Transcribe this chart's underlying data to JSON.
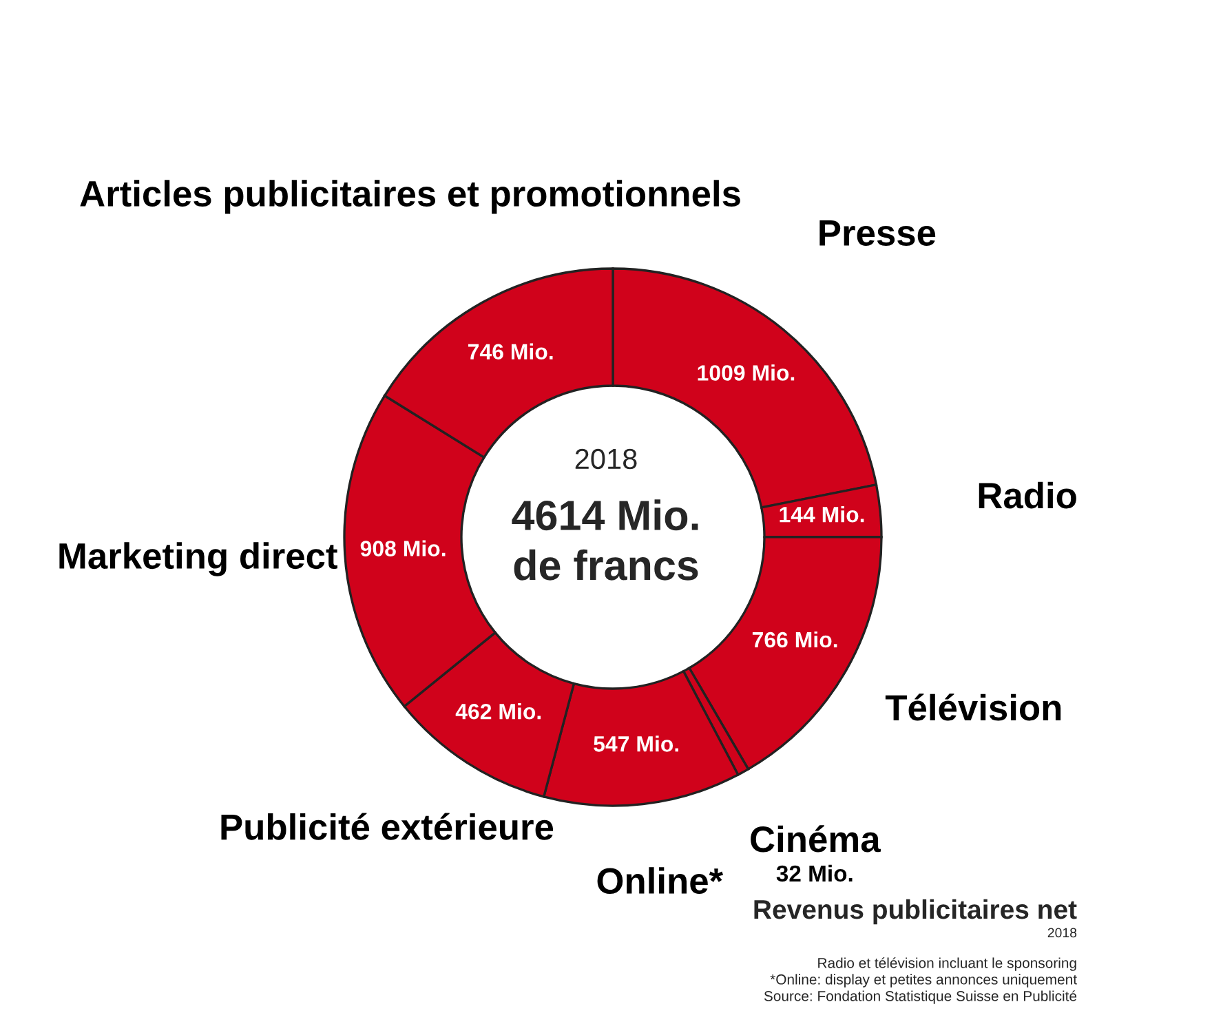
{
  "chart_data": {
    "type": "donut",
    "title": "Revenus publicitaires net",
    "subtitle": "2018",
    "categories": [
      "Presse",
      "Radio",
      "Télévision",
      "Cinéma",
      "Online*",
      "Publicité extérieure",
      "Marketing direct",
      "Articles publicitaires et promotionnels"
    ],
    "values": [
      1009,
      144,
      766,
      32,
      547,
      462,
      908,
      746
    ],
    "colors": [
      "#d0021b",
      "#d0021b",
      "#d0021b",
      "#d0021b",
      "#d0021b",
      "#d0021b",
      "#d0021b",
      "#d0021b"
    ],
    "value_labels": [
      "1009 Mio.",
      "144 Mio.",
      "766 Mio.",
      "32 Mio.",
      "547 Mio.",
      "462 Mio.",
      "908 Mio.",
      "746 Mio."
    ],
    "annotations": [
      "2018",
      "4614 Mio.\nde francs",
      "Radio et télévision incluant le sponsoring",
      "*Online: display et petites annonces uniquement",
      "Source: Fondation Statistique Suisse en Publicité"
    ],
    "legend": false
  }
}
